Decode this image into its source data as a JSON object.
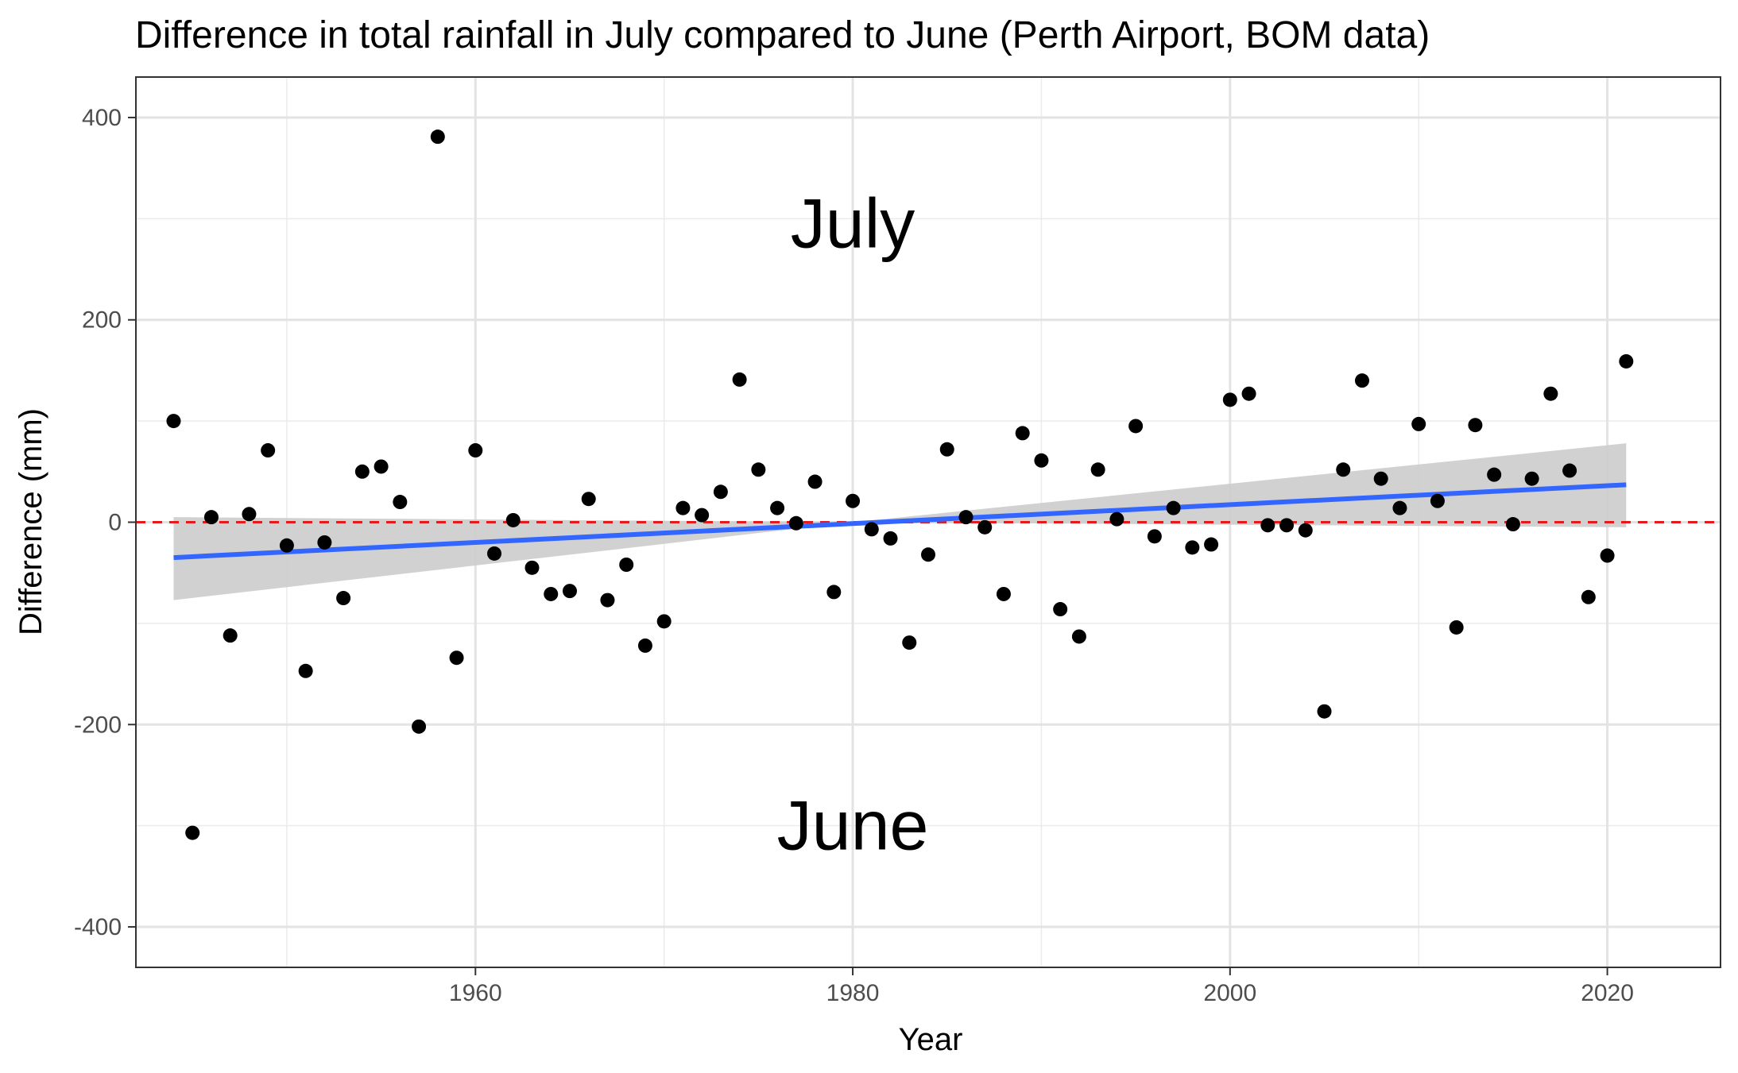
{
  "chart_data": {
    "type": "scatter",
    "title": "Difference in total rainfall in July compared to June (Perth Airport, BOM data)",
    "xlabel": "Year",
    "ylabel": "Difference (mm)",
    "xlim": [
      1942,
      2026
    ],
    "ylim": [
      -440,
      440
    ],
    "x_ticks": [
      1960,
      1980,
      2000,
      2020
    ],
    "y_ticks": [
      -400,
      -200,
      0,
      200,
      400
    ],
    "x_tick_labels": [
      "1960",
      "1980",
      "2000",
      "2020"
    ],
    "y_tick_labels": [
      "-400",
      "-200",
      "0",
      "200",
      "400"
    ],
    "grid": true,
    "legend": "none",
    "annotations": [
      {
        "label": "July",
        "x": 1980,
        "y": 295
      },
      {
        "label": "June",
        "x": 1980,
        "y": -300
      }
    ],
    "reference_line": {
      "y": 0,
      "style": "dashed",
      "color": "#e41a1c"
    },
    "trend": {
      "x0": 1944,
      "y0": -35,
      "x1": 2021,
      "y1": 37,
      "color": "#3366ff",
      "ci_low": [
        -77,
        0,
        -5
      ],
      "ci_high": [
        5,
        0,
        78
      ],
      "ci_x": [
        1944,
        1980,
        2021
      ]
    },
    "colors": {
      "points": "#000000",
      "trend": "#3366ff",
      "band": "#cccccc",
      "ref": "#e41a1c"
    },
    "points": [
      [
        1944,
        100
      ],
      [
        1945,
        -307
      ],
      [
        1946,
        5
      ],
      [
        1947,
        -112
      ],
      [
        1948,
        8
      ],
      [
        1949,
        71
      ],
      [
        1950,
        -23
      ],
      [
        1951,
        -147
      ],
      [
        1952,
        -20
      ],
      [
        1953,
        -75
      ],
      [
        1954,
        50
      ],
      [
        1955,
        55
      ],
      [
        1956,
        20
      ],
      [
        1957,
        -202
      ],
      [
        1958,
        381
      ],
      [
        1959,
        -134
      ],
      [
        1960,
        71
      ],
      [
        1961,
        -31
      ],
      [
        1962,
        2
      ],
      [
        1963,
        -45
      ],
      [
        1964,
        -71
      ],
      [
        1965,
        -68
      ],
      [
        1966,
        23
      ],
      [
        1967,
        -77
      ],
      [
        1968,
        -42
      ],
      [
        1969,
        -122
      ],
      [
        1970,
        -98
      ],
      [
        1971,
        14
      ],
      [
        1972,
        7
      ],
      [
        1973,
        30
      ],
      [
        1974,
        141
      ],
      [
        1975,
        52
      ],
      [
        1976,
        14
      ],
      [
        1977,
        -1
      ],
      [
        1978,
        40
      ],
      [
        1979,
        -69
      ],
      [
        1980,
        21
      ],
      [
        1981,
        -7
      ],
      [
        1982,
        -16
      ],
      [
        1983,
        -119
      ],
      [
        1984,
        -32
      ],
      [
        1985,
        72
      ],
      [
        1986,
        5
      ],
      [
        1987,
        -5
      ],
      [
        1988,
        -71
      ],
      [
        1989,
        88
      ],
      [
        1990,
        61
      ],
      [
        1991,
        -86
      ],
      [
        1992,
        -113
      ],
      [
        1993,
        52
      ],
      [
        1994,
        3
      ],
      [
        1995,
        95
      ],
      [
        1996,
        -14
      ],
      [
        1997,
        14
      ],
      [
        1998,
        -25
      ],
      [
        1999,
        -22
      ],
      [
        2000,
        121
      ],
      [
        2001,
        127
      ],
      [
        2002,
        -3
      ],
      [
        2003,
        -3
      ],
      [
        2004,
        -8
      ],
      [
        2005,
        -187
      ],
      [
        2006,
        52
      ],
      [
        2007,
        140
      ],
      [
        2008,
        43
      ],
      [
        2009,
        14
      ],
      [
        2010,
        97
      ],
      [
        2011,
        21
      ],
      [
        2012,
        -104
      ],
      [
        2013,
        96
      ],
      [
        2014,
        47
      ],
      [
        2015,
        -2
      ],
      [
        2016,
        43
      ],
      [
        2017,
        127
      ],
      [
        2018,
        51
      ],
      [
        2019,
        -74
      ],
      [
        2020,
        -33
      ],
      [
        2021,
        159
      ]
    ]
  }
}
